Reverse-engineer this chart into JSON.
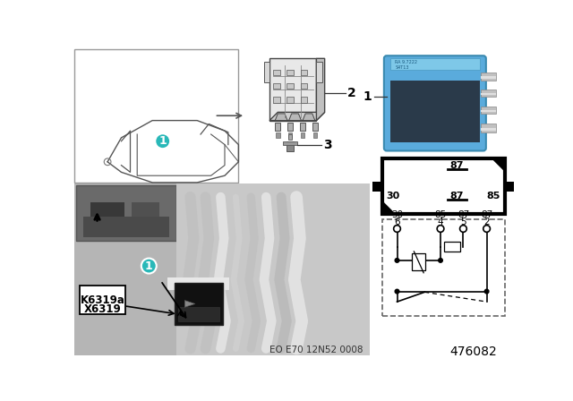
{
  "bg_color": "#ffffff",
  "teal_color": "#29b8b8",
  "blue_relay_color": "#5aabdc",
  "part_number": "476082",
  "eo_text": "EO E70 12N52 0008",
  "photo_bg": "#a8a8a8",
  "photo_dark": "#606060",
  "photo_light": "#d0d0d0",
  "inset_bg": "#707070",
  "car_box_border": "#888888",
  "label_box_text": "K6319a\nX6319"
}
